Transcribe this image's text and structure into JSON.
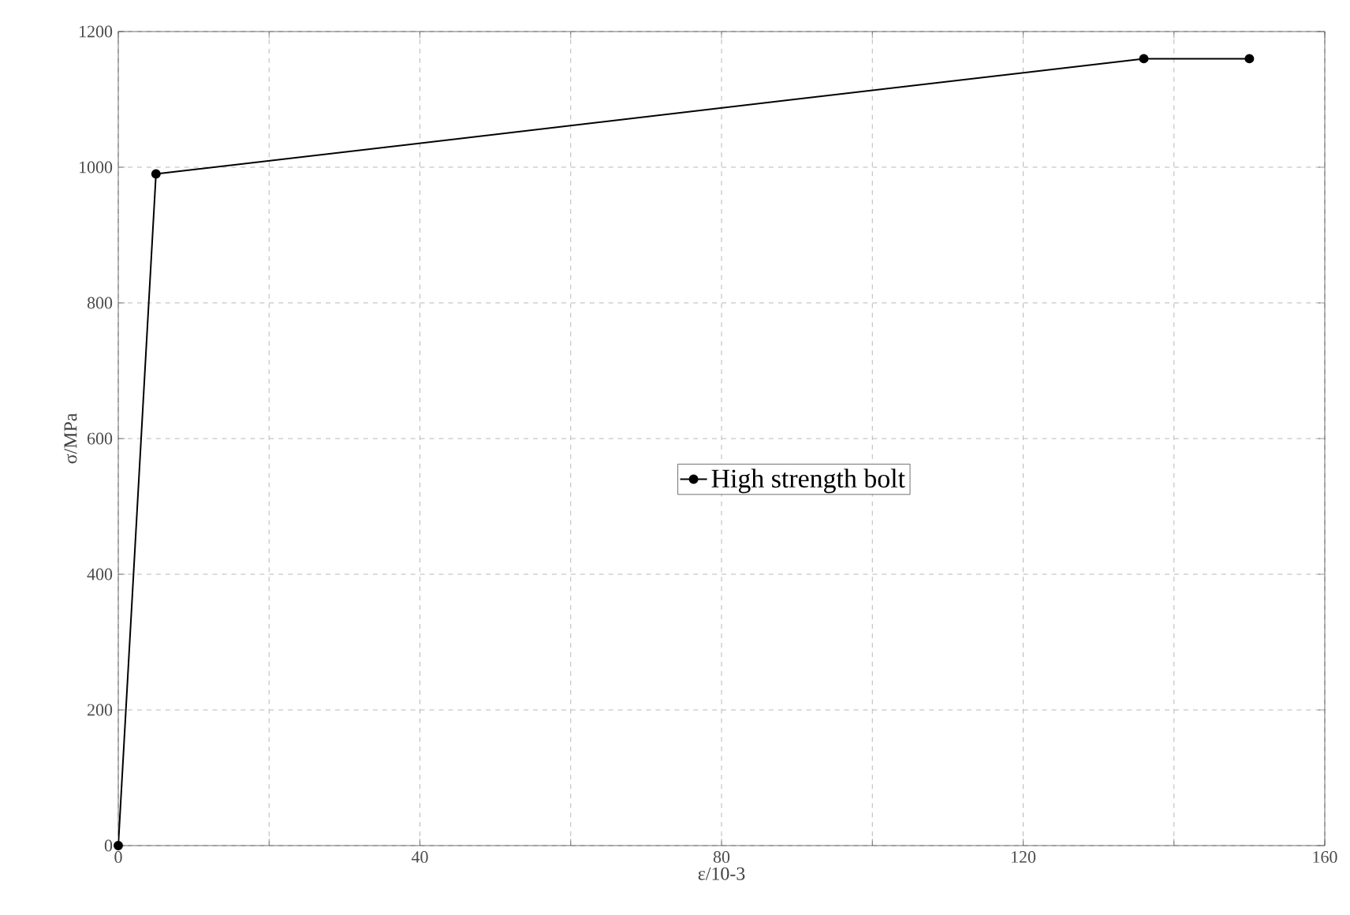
{
  "chart_data": {
    "type": "line",
    "xlabel": "ε/10-3",
    "ylabel": "σ/MPa",
    "x": [
      0,
      5,
      136,
      150
    ],
    "series": [
      {
        "name": "High strength bolt",
        "color": "#000000",
        "values": [
          0,
          990,
          1160,
          1160
        ]
      }
    ],
    "xlim": [
      0,
      160
    ],
    "ylim": [
      0,
      1200
    ],
    "xticks": [
      0,
      {
        "value": 20,
        "label": null
      },
      40,
      {
        "value": 60,
        "label": null
      },
      80,
      {
        "value": 100,
        "label": null
      },
      120,
      {
        "value": 140,
        "label": null
      },
      160
    ],
    "yticks": [
      0,
      200,
      400,
      600,
      800,
      1000,
      1200
    ],
    "grid": true,
    "legend": "center",
    "marker": "circle",
    "line_style": "solid"
  }
}
